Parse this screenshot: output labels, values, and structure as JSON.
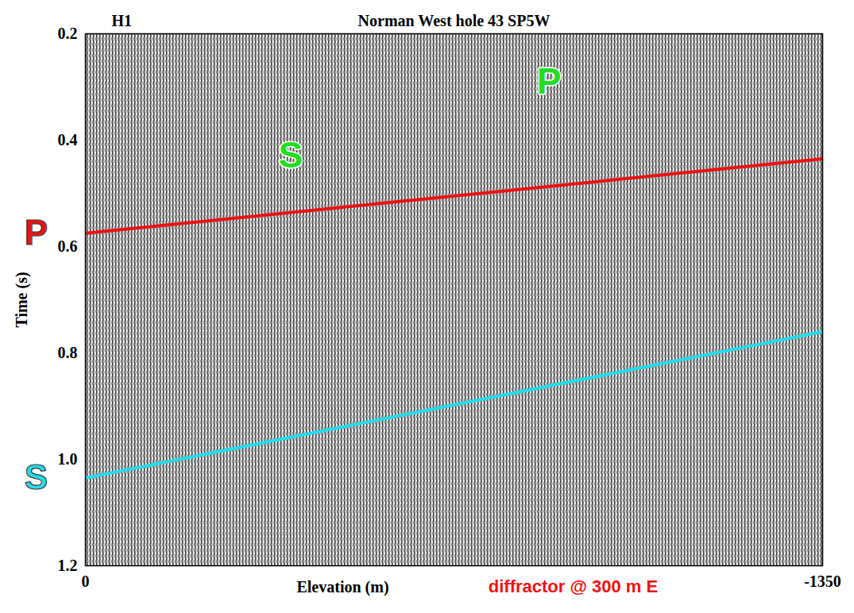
{
  "chart_data": {
    "type": "line",
    "title": "Norman West hole 43 SP5W",
    "corner_label": "H1",
    "x_label": "Elevation (m)",
    "y_label": "Time (s)",
    "note": "diffractor @ 300 m E",
    "note_color": "#ee1111",
    "xlim": [
      0,
      -1350
    ],
    "xticks": [
      0,
      -1350
    ],
    "ylim": [
      0.2,
      1.2
    ],
    "yticks": [
      0.2,
      0.4,
      0.6,
      0.8,
      {
        "value": 1,
        "label": "1.0"
      },
      1.2
    ],
    "grid": false,
    "series": [
      {
        "name": "P",
        "color": "#ee1111",
        "x": [
          0,
          -1350
        ],
        "values": [
          0.575,
          0.435
        ]
      },
      {
        "name": "S",
        "color": "#22dcec",
        "x": [
          0,
          -1350
        ],
        "values": [
          1.035,
          0.76
        ]
      }
    ],
    "annotations": [
      {
        "text": "P",
        "x": -849,
        "y": 0.29,
        "color": "#22dd22"
      },
      {
        "text": "S",
        "x": -376,
        "y": 0.43,
        "color": "#22dd22"
      }
    ]
  }
}
